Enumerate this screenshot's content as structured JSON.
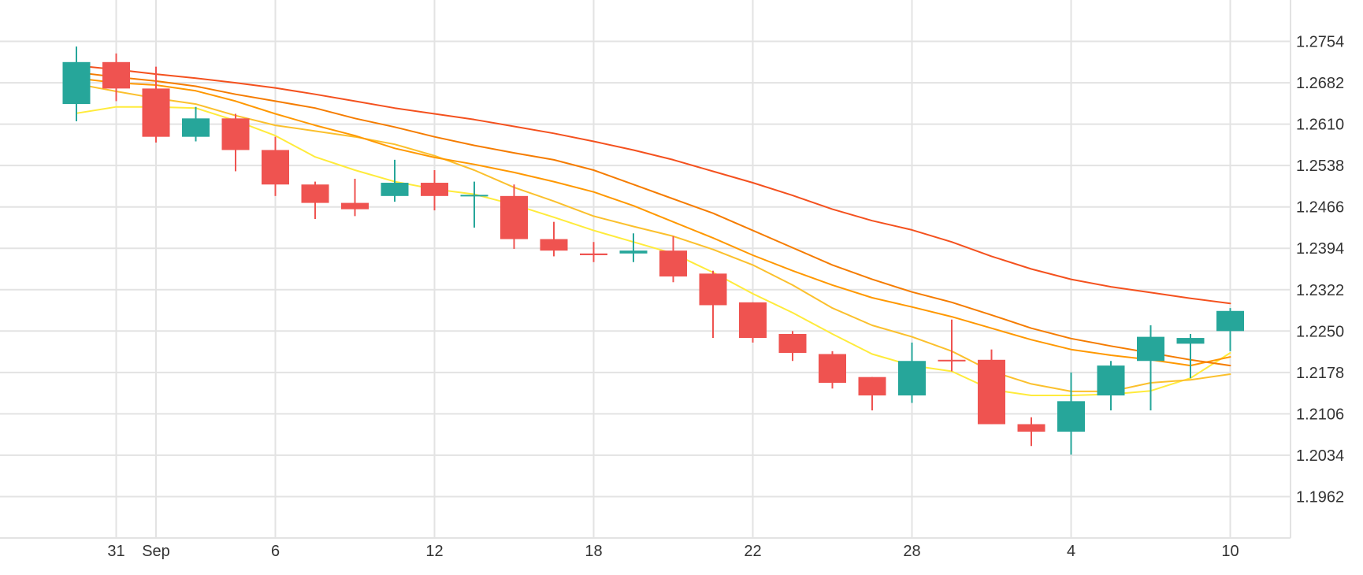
{
  "chart_data": {
    "type": "candlestick",
    "title": "",
    "xlabel": "",
    "ylabel": "",
    "ylim": [
      1.189,
      1.2826
    ],
    "y_ticks": [
      "1.2754",
      "1.2682",
      "1.2610",
      "1.2538",
      "1.2466",
      "1.2394",
      "1.2322",
      "1.2250",
      "1.2178",
      "1.2106",
      "1.2034",
      "1.1962"
    ],
    "x_ticks": [
      {
        "label": "31",
        "index": 1
      },
      {
        "label": "Sep",
        "index": 2
      },
      {
        "label": "6",
        "index": 5
      },
      {
        "label": "12",
        "index": 9
      },
      {
        "label": "18",
        "index": 13
      },
      {
        "label": "22",
        "index": 17
      },
      {
        "label": "28",
        "index": 21
      },
      {
        "label": "4",
        "index": 25
      },
      {
        "label": "10",
        "index": 29
      }
    ],
    "colors": {
      "up": "#26a69a",
      "down": "#ef5350",
      "grid": "#e3e3e3",
      "text": "#333333",
      "ma_lines": [
        "#ffeb3b",
        "#fbc02d",
        "#ff9800",
        "#f57c00",
        "#f4511e"
      ]
    },
    "candles": [
      {
        "o": 1.2645,
        "h": 1.2745,
        "l": 1.2615,
        "c": 1.2718
      },
      {
        "o": 1.2718,
        "h": 1.2733,
        "l": 1.265,
        "c": 1.2672
      },
      {
        "o": 1.2672,
        "h": 1.271,
        "l": 1.2578,
        "c": 1.2588
      },
      {
        "o": 1.2588,
        "h": 1.264,
        "l": 1.258,
        "c": 1.262
      },
      {
        "o": 1.262,
        "h": 1.2628,
        "l": 1.2528,
        "c": 1.2565
      },
      {
        "o": 1.2565,
        "h": 1.2588,
        "l": 1.2485,
        "c": 1.2505
      },
      {
        "o": 1.2505,
        "h": 1.251,
        "l": 1.2445,
        "c": 1.2473
      },
      {
        "o": 1.2473,
        "h": 1.2515,
        "l": 1.245,
        "c": 1.2462
      },
      {
        "o": 1.2485,
        "h": 1.2548,
        "l": 1.2475,
        "c": 1.2508
      },
      {
        "o": 1.2508,
        "h": 1.253,
        "l": 1.246,
        "c": 1.2485
      },
      {
        "o": 1.2485,
        "h": 1.251,
        "l": 1.243,
        "c": 1.2487
      },
      {
        "o": 1.2485,
        "h": 1.2505,
        "l": 1.2393,
        "c": 1.241
      },
      {
        "o": 1.241,
        "h": 1.244,
        "l": 1.238,
        "c": 1.239
      },
      {
        "o": 1.2385,
        "h": 1.2405,
        "l": 1.237,
        "c": 1.2382
      },
      {
        "o": 1.2385,
        "h": 1.242,
        "l": 1.237,
        "c": 1.239
      },
      {
        "o": 1.239,
        "h": 1.2415,
        "l": 1.2335,
        "c": 1.2345
      },
      {
        "o": 1.235,
        "h": 1.2355,
        "l": 1.2238,
        "c": 1.2295
      },
      {
        "o": 1.23,
        "h": 1.23,
        "l": 1.223,
        "c": 1.2238
      },
      {
        "o": 1.2245,
        "h": 1.225,
        "l": 1.2198,
        "c": 1.2212
      },
      {
        "o": 1.221,
        "h": 1.2215,
        "l": 1.215,
        "c": 1.216
      },
      {
        "o": 1.217,
        "h": 1.217,
        "l": 1.2112,
        "c": 1.2138
      },
      {
        "o": 1.2138,
        "h": 1.223,
        "l": 1.2125,
        "c": 1.2198
      },
      {
        "o": 1.22,
        "h": 1.227,
        "l": 1.218,
        "c": 1.2198
      },
      {
        "o": 1.22,
        "h": 1.2218,
        "l": 1.2088,
        "c": 1.2088
      },
      {
        "o": 1.2088,
        "h": 1.21,
        "l": 1.205,
        "c": 1.2075
      },
      {
        "o": 1.2075,
        "h": 1.2178,
        "l": 1.2035,
        "c": 1.2128
      },
      {
        "o": 1.2138,
        "h": 1.2198,
        "l": 1.2112,
        "c": 1.219
      },
      {
        "o": 1.2198,
        "h": 1.226,
        "l": 1.2112,
        "c": 1.224
      },
      {
        "o": 1.2228,
        "h": 1.2245,
        "l": 1.2168,
        "c": 1.2238
      },
      {
        "o": 1.225,
        "h": 1.229,
        "l": 1.2215,
        "c": 1.2285
      }
    ],
    "ma_series": [
      {
        "values": [
          1.2629,
          1.264,
          1.264,
          1.2638,
          1.2616,
          1.259,
          1.2553,
          1.253,
          1.251,
          1.2497,
          1.2488,
          1.247,
          1.2448,
          1.2425,
          1.2405,
          1.2385,
          1.2352,
          1.2315,
          1.2282,
          1.2245,
          1.221,
          1.219,
          1.218,
          1.2148,
          1.2138,
          1.2138,
          1.214,
          1.2146,
          1.2168,
          1.2212
        ]
      },
      {
        "values": [
          1.268,
          1.2667,
          1.2655,
          1.2645,
          1.2625,
          1.2608,
          1.2598,
          1.2588,
          1.2575,
          1.2555,
          1.253,
          1.25,
          1.2476,
          1.245,
          1.2432,
          1.2415,
          1.2392,
          1.2365,
          1.233,
          1.229,
          1.226,
          1.224,
          1.2215,
          1.218,
          1.2158,
          1.2145,
          1.2145,
          1.216,
          1.2165,
          1.2175
        ]
      },
      {
        "values": [
          1.269,
          1.2682,
          1.2678,
          1.2668,
          1.265,
          1.2628,
          1.2608,
          1.259,
          1.2568,
          1.2552,
          1.254,
          1.2526,
          1.251,
          1.2492,
          1.2468,
          1.244,
          1.2412,
          1.2382,
          1.2355,
          1.233,
          1.2308,
          1.2292,
          1.2275,
          1.2255,
          1.2235,
          1.2218,
          1.2208,
          1.22,
          1.219,
          1.2205
        ]
      },
      {
        "values": [
          1.27,
          1.2692,
          1.2685,
          1.2676,
          1.2662,
          1.265,
          1.2638,
          1.262,
          1.2605,
          1.2588,
          1.2573,
          1.256,
          1.2548,
          1.253,
          1.2505,
          1.248,
          1.2455,
          1.2425,
          1.2395,
          1.2365,
          1.234,
          1.2318,
          1.23,
          1.2278,
          1.2255,
          1.2237,
          1.2224,
          1.2212,
          1.22,
          1.219
        ]
      },
      {
        "values": [
          1.2712,
          1.2705,
          1.2697,
          1.269,
          1.2682,
          1.2673,
          1.2662,
          1.265,
          1.2638,
          1.2628,
          1.2618,
          1.2606,
          1.2594,
          1.258,
          1.2565,
          1.2548,
          1.2528,
          1.2508,
          1.2486,
          1.2462,
          1.2442,
          1.2426,
          1.2405,
          1.238,
          1.2358,
          1.234,
          1.2327,
          1.2317,
          1.2307,
          1.2298
        ]
      }
    ]
  }
}
